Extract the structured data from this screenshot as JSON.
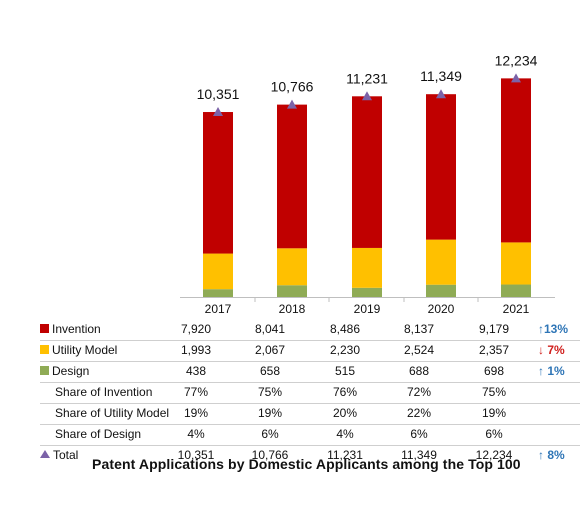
{
  "chart_data": {
    "type": "bar",
    "title": "Patent Applications by Domestic Applicants among the Top 100",
    "categories": [
      "2017",
      "2018",
      "2019",
      "2020",
      "2021"
    ],
    "series": [
      {
        "name": "Design",
        "values": [
          438,
          658,
          515,
          688,
          698
        ],
        "color": "#8fab55"
      },
      {
        "name": "Utility Model",
        "values": [
          1993,
          2067,
          2230,
          2524,
          2357
        ],
        "color": "#ffc000"
      },
      {
        "name": "Invention",
        "values": [
          7920,
          8041,
          8486,
          8137,
          9179
        ],
        "color": "#c00000"
      }
    ],
    "total": {
      "name": "Total",
      "values": [
        10351,
        10766,
        11231,
        11349,
        12234
      ],
      "marker": "triangle",
      "marker_color": "#7b62a8"
    },
    "total_labels": [
      "10,351",
      "10,766",
      "11,231",
      "11,349",
      "12,234"
    ],
    "stacked": true,
    "legend": "data table",
    "grid": false
  },
  "table": {
    "rows": [
      {
        "label": "Invention",
        "swatch": "#c00000",
        "marker": "square",
        "values": [
          "7,920",
          "8,041",
          "8,486",
          "8,137",
          "9,179"
        ],
        "change": "↑13%",
        "change_dir": "up"
      },
      {
        "label": "Utility Model",
        "swatch": "#ffc000",
        "marker": "square",
        "values": [
          "1,993",
          "2,067",
          "2,230",
          "2,524",
          "2,357"
        ],
        "change": "↓ 7%",
        "change_dir": "down"
      },
      {
        "label": "Design",
        "swatch": "#8fab55",
        "marker": "square",
        "values": [
          "438",
          "658",
          "515",
          "688",
          "698"
        ],
        "change": "↑ 1%",
        "change_dir": "up"
      },
      {
        "label": "Share of Invention",
        "marker": "none",
        "values": [
          "77%",
          "75%",
          "76%",
          "72%",
          "75%"
        ],
        "change": "",
        "change_dir": ""
      },
      {
        "label": "Share of Utility Model",
        "marker": "none",
        "values": [
          "19%",
          "19%",
          "20%",
          "22%",
          "19%"
        ],
        "change": "",
        "change_dir": ""
      },
      {
        "label": "Share of Design",
        "marker": "none",
        "values": [
          "4%",
          "6%",
          "4%",
          "6%",
          "6%"
        ],
        "change": "",
        "change_dir": ""
      },
      {
        "label": "Total",
        "swatch": "#7b62a8",
        "marker": "triangle",
        "values": [
          "10,351",
          "10,766",
          "11,231",
          "11,349",
          "12,234"
        ],
        "change": "↑ 8%",
        "change_dir": "up"
      }
    ]
  }
}
